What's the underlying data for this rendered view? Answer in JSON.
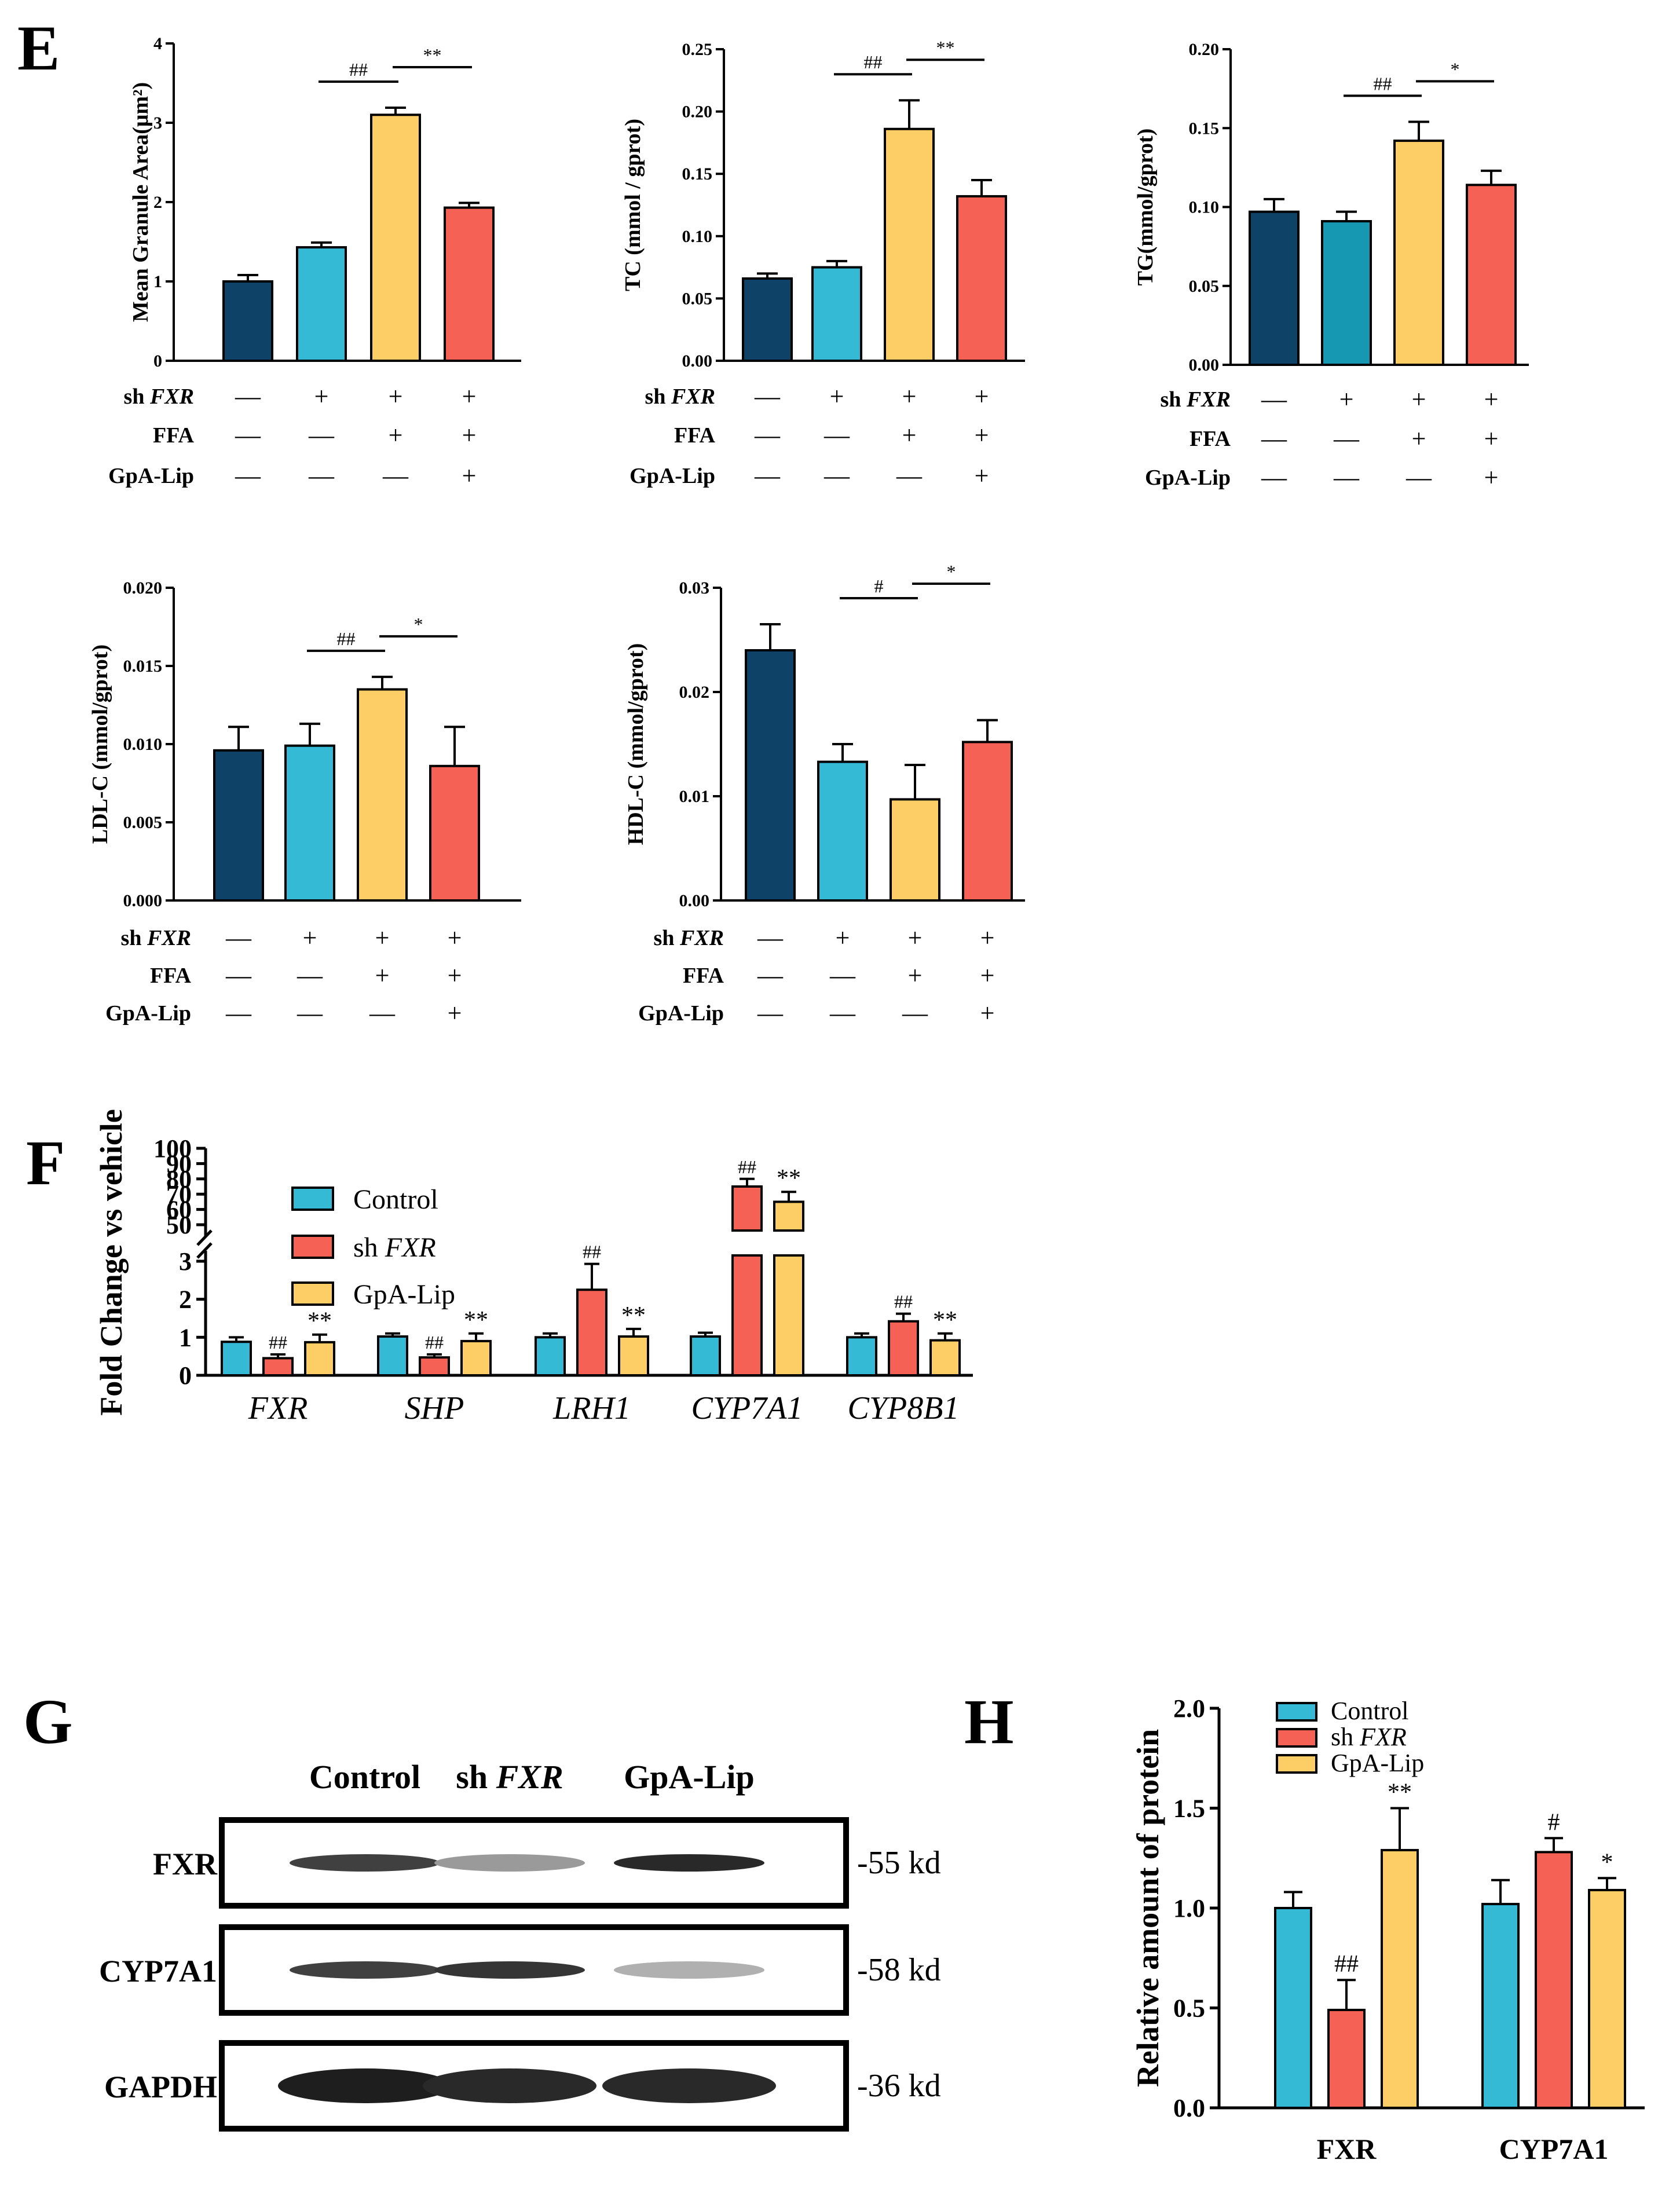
{
  "panels": {
    "E": "E",
    "F": "F",
    "G": "G",
    "H": "H"
  },
  "colors": {
    "control": "#0E4266",
    "shfxr_teal": "#35BAD6",
    "shfxr_teal2": "#1697B2",
    "ffa": "#FDCE66",
    "gpa": "#F66155"
  },
  "treatment_rows": {
    "labels": [
      "sh FXR",
      "FFA",
      "GpA-Lip"
    ],
    "signs": [
      [
        "—",
        "+",
        "+",
        "+"
      ],
      [
        "—",
        "—",
        "+",
        "+"
      ],
      [
        "—",
        "—",
        "—",
        "+"
      ]
    ]
  },
  "chart_data": [
    {
      "id": "E1",
      "type": "bar",
      "ylabel": "Mean Granule Area(μm²)",
      "ylim": [
        0,
        4
      ],
      "yticks": [
        "0",
        "1",
        "2",
        "3",
        "4"
      ],
      "values": [
        1.0,
        1.43,
        3.1,
        1.93
      ],
      "errors": [
        0.08,
        0.06,
        0.09,
        0.06
      ],
      "brackets": [
        {
          "from": 1,
          "to": 2,
          "label": "##"
        },
        {
          "from": 2,
          "to": 3,
          "label": "**"
        }
      ]
    },
    {
      "id": "E2",
      "type": "bar",
      "ylabel": "TC (mmol / gprot)",
      "ylim": [
        0,
        0.25
      ],
      "yticks": [
        "0.00",
        "0.05",
        "0.10",
        "0.15",
        "0.20",
        "0.25"
      ],
      "values": [
        0.066,
        0.075,
        0.186,
        0.132
      ],
      "errors": [
        0.004,
        0.005,
        0.023,
        0.013
      ],
      "brackets": [
        {
          "from": 1,
          "to": 2,
          "label": "##"
        },
        {
          "from": 2,
          "to": 3,
          "label": "**"
        }
      ]
    },
    {
      "id": "E3",
      "type": "bar",
      "ylabel": "TG(mmol/gprot)",
      "ylim": [
        0,
        0.2
      ],
      "yticks": [
        "0.00",
        "0.05",
        "0.10",
        "0.15",
        "0.20"
      ],
      "values": [
        0.097,
        0.091,
        0.142,
        0.114
      ],
      "errors": [
        0.008,
        0.006,
        0.012,
        0.009
      ],
      "brackets": [
        {
          "from": 1,
          "to": 2,
          "label": "##"
        },
        {
          "from": 2,
          "to": 3,
          "label": "*"
        }
      ]
    },
    {
      "id": "E4",
      "type": "bar",
      "ylabel": "LDL-C (mmol/gprot)",
      "ylim": [
        0,
        0.02
      ],
      "yticks": [
        "0.000",
        "0.005",
        "0.010",
        "0.015",
        "0.020"
      ],
      "values": [
        0.0096,
        0.0099,
        0.0135,
        0.0086
      ],
      "errors": [
        0.0015,
        0.0014,
        0.0008,
        0.0025
      ],
      "brackets": [
        {
          "from": 1,
          "to": 2,
          "label": "##"
        },
        {
          "from": 2,
          "to": 3,
          "label": "*"
        }
      ]
    },
    {
      "id": "E5",
      "type": "bar",
      "ylabel": "HDL-C (mmol/gprot)",
      "ylim": [
        0,
        0.03
      ],
      "yticks": [
        "0.00",
        "0.01",
        "0.02",
        "0.03"
      ],
      "values": [
        0.024,
        0.0133,
        0.0097,
        0.0152
      ],
      "errors": [
        0.0025,
        0.0017,
        0.0033,
        0.0021
      ],
      "brackets": [
        {
          "from": 1,
          "to": 2,
          "label": "#"
        },
        {
          "from": 2,
          "to": 3,
          "label": "*"
        }
      ]
    },
    {
      "id": "F",
      "type": "bar",
      "ylabel": "Fold Change vs vehicle",
      "yticks_lower": [
        "0",
        "1",
        "2",
        "3"
      ],
      "yticks_upper": [
        "50",
        "60",
        "70",
        "80",
        "90",
        "100"
      ],
      "axis_break": [
        3,
        50
      ],
      "categories": [
        "FXR",
        "SHP",
        "LRH1",
        "CYP7A1",
        "CYP8B1"
      ],
      "series": [
        {
          "name": "Control",
          "values": [
            0.88,
            1.02,
            1.0,
            1.02,
            1.0
          ],
          "errors": [
            0.12,
            0.08,
            0.1,
            0.1,
            0.1
          ]
        },
        {
          "name": "sh FXR",
          "values": [
            0.45,
            0.47,
            2.25,
            75,
            1.42
          ],
          "errors": [
            0.1,
            0.08,
            0.68,
            5,
            0.2
          ]
        },
        {
          "name": "GpA-Lip",
          "values": [
            0.87,
            0.9,
            1.02,
            65,
            0.92
          ],
          "errors": [
            0.2,
            0.2,
            0.2,
            6.5,
            0.18
          ]
        }
      ],
      "annotations": [
        {
          "cat": 0,
          "series": 1,
          "label": "##"
        },
        {
          "cat": 0,
          "series": 2,
          "label": "**"
        },
        {
          "cat": 1,
          "series": 1,
          "label": "##"
        },
        {
          "cat": 1,
          "series": 2,
          "label": "**"
        },
        {
          "cat": 2,
          "series": 1,
          "label": "##"
        },
        {
          "cat": 2,
          "series": 2,
          "label": "**"
        },
        {
          "cat": 3,
          "series": 1,
          "label": "##"
        },
        {
          "cat": 3,
          "series": 2,
          "label": "**"
        },
        {
          "cat": 4,
          "series": 1,
          "label": "##"
        },
        {
          "cat": 4,
          "series": 2,
          "label": "**"
        }
      ]
    },
    {
      "id": "H",
      "type": "bar",
      "ylabel": "Relative amount of protein",
      "ylim": [
        0,
        2.0
      ],
      "yticks": [
        "0.0",
        "0.5",
        "1.0",
        "1.5",
        "2.0"
      ],
      "categories": [
        "FXR",
        "CYP7A1"
      ],
      "series": [
        {
          "name": "Control",
          "values": [
            1.0,
            1.02
          ],
          "errors": [
            0.08,
            0.12
          ]
        },
        {
          "name": "sh FXR",
          "values": [
            0.49,
            1.28
          ],
          "errors": [
            0.15,
            0.07
          ]
        },
        {
          "name": "GpA-Lip",
          "values": [
            1.29,
            1.09
          ],
          "errors": [
            0.21,
            0.06
          ]
        }
      ],
      "annotations": [
        {
          "cat": 0,
          "series": 1,
          "label": "##"
        },
        {
          "cat": 0,
          "series": 2,
          "label": "**"
        },
        {
          "cat": 1,
          "series": 1,
          "label": "#"
        },
        {
          "cat": 1,
          "series": 2,
          "label": "*"
        }
      ]
    }
  ],
  "western_blot": {
    "lanes": [
      "Control",
      "sh FXR",
      "GpA-Lip"
    ],
    "rows": [
      {
        "label": "FXR",
        "kd": "-55 kd",
        "intensity": [
          0.85,
          0.45,
          0.95
        ]
      },
      {
        "label": "CYP7A1",
        "kd": "-58 kd",
        "intensity": [
          0.85,
          0.9,
          0.35
        ]
      },
      {
        "label": "GAPDH",
        "kd": "-36 kd",
        "intensity": [
          1.0,
          0.95,
          0.95
        ]
      }
    ]
  }
}
